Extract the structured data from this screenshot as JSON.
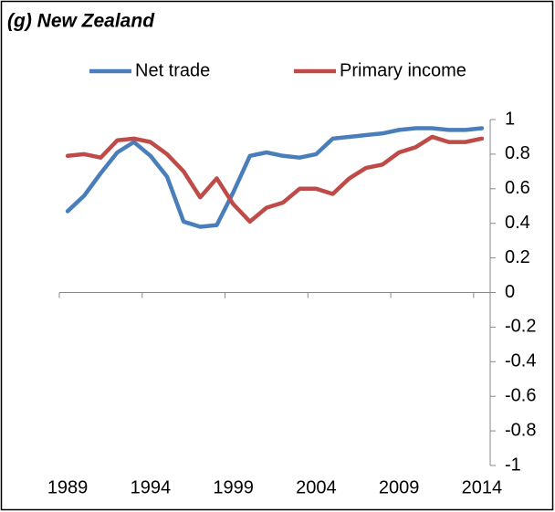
{
  "chart_data": {
    "type": "line",
    "title": "(g) New Zealand",
    "categories": [
      "1989",
      null,
      null,
      null,
      null,
      "1994",
      null,
      null,
      null,
      null,
      "1999",
      null,
      null,
      null,
      null,
      "2004",
      null,
      null,
      null,
      null,
      "2009",
      null,
      null,
      null,
      null,
      "2014"
    ],
    "series": [
      {
        "name": "Net trade",
        "color": "#4a7ebb",
        "values": [
          0.47,
          0.56,
          0.69,
          0.81,
          0.87,
          0.79,
          0.67,
          0.41,
          0.38,
          0.39,
          0.58,
          0.79,
          0.81,
          0.79,
          0.78,
          0.8,
          0.89,
          0.9,
          0.91,
          0.92,
          0.94,
          0.95,
          0.95,
          0.94,
          0.94,
          0.95
        ]
      },
      {
        "name": "Primary income",
        "color": "#be4b48",
        "values": [
          0.79,
          0.8,
          0.78,
          0.88,
          0.89,
          0.87,
          0.8,
          0.7,
          0.55,
          0.66,
          0.51,
          0.41,
          0.49,
          0.52,
          0.6,
          0.6,
          0.57,
          0.66,
          0.72,
          0.74,
          0.81,
          0.84,
          0.9,
          0.87,
          0.87,
          0.89
        ]
      }
    ],
    "ylim": [
      -1,
      1
    ],
    "yticks": [
      1,
      0.8,
      0.6,
      0.4,
      0.2,
      0,
      -0.2,
      -0.4,
      -0.6,
      -0.8,
      -1
    ],
    "y_axis_side": "right",
    "legend": "top",
    "grid": false
  }
}
